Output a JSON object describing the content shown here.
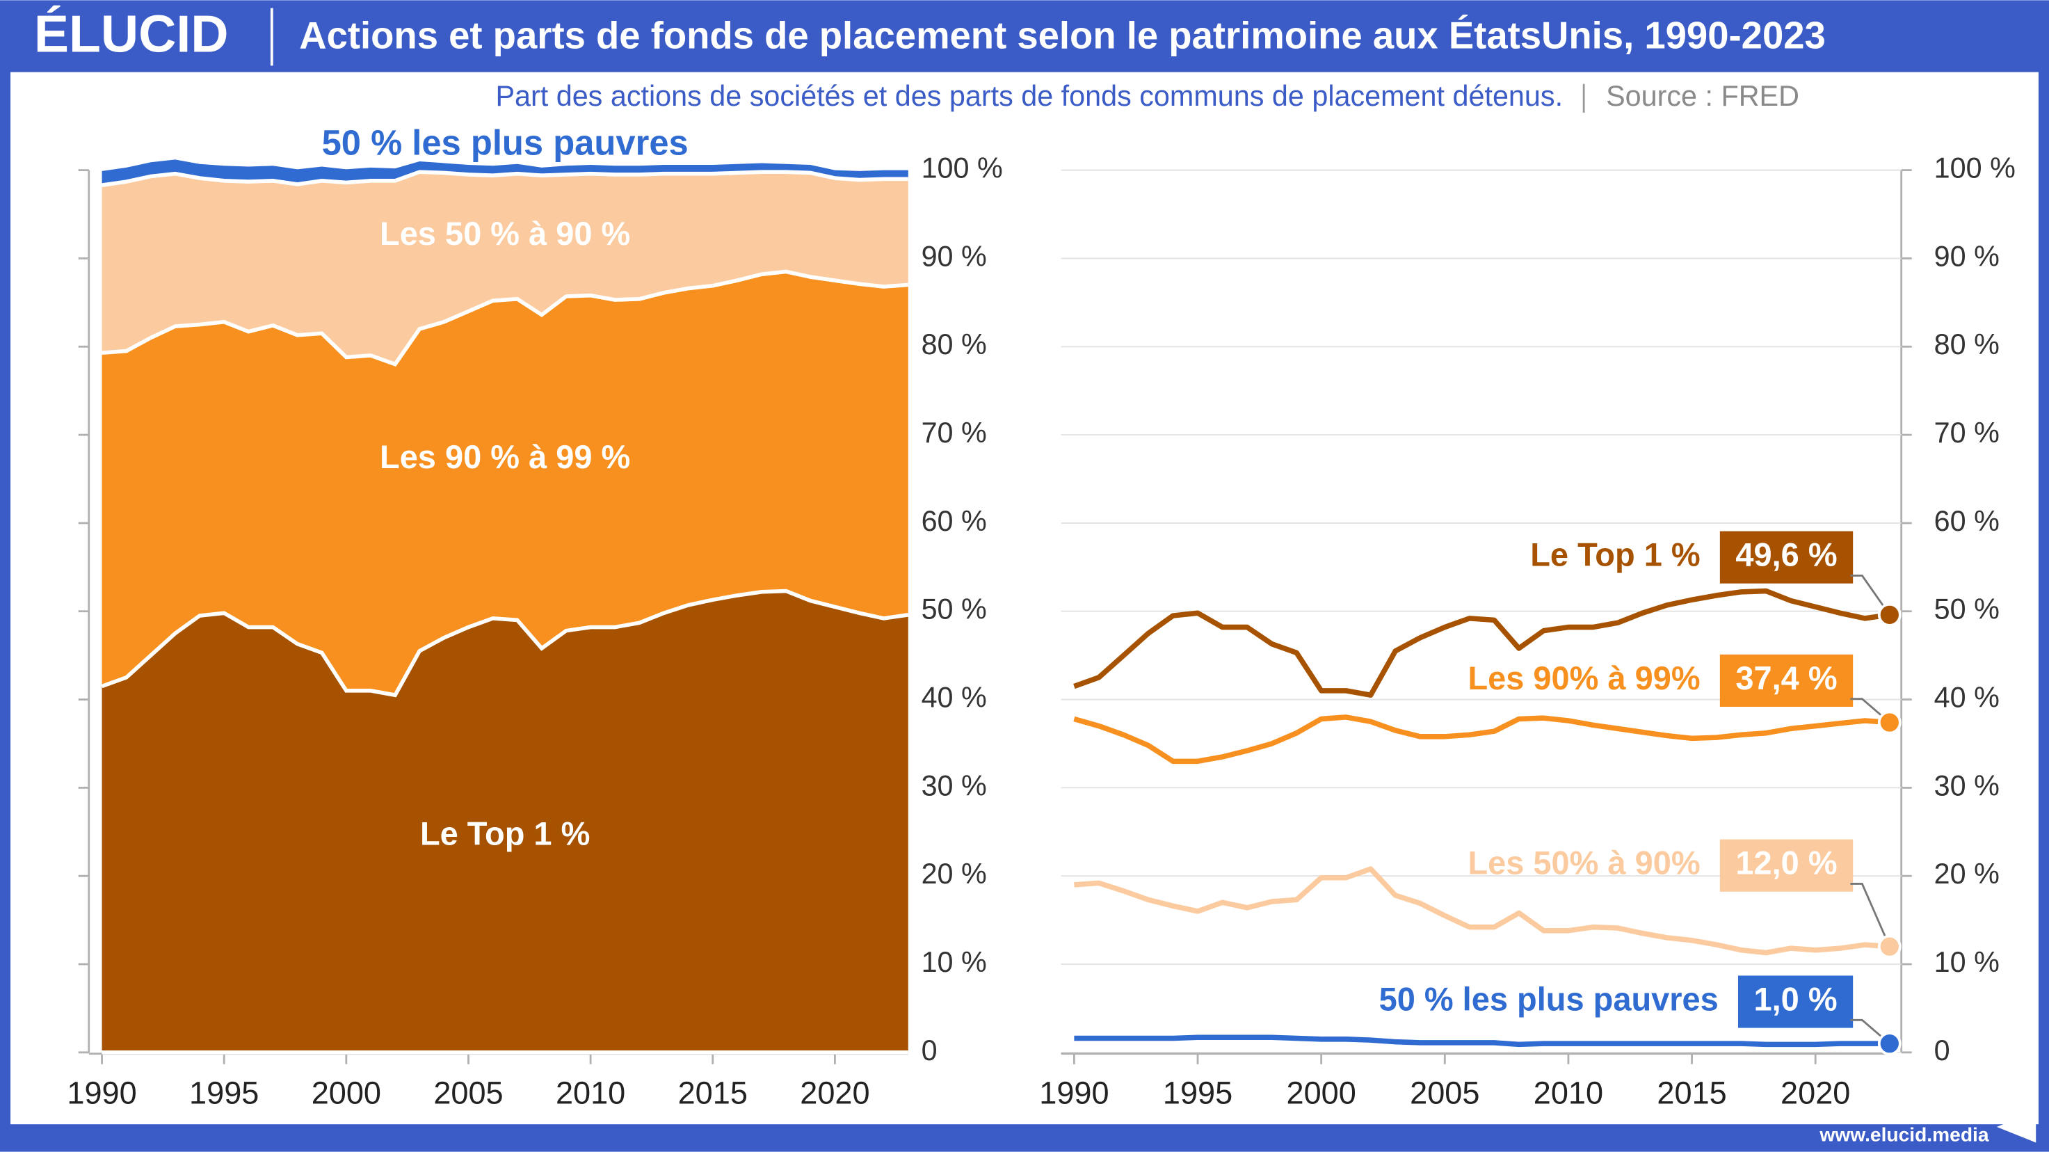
{
  "header": {
    "brand": "ÉLUCID",
    "title": "Actions et parts de fonds de placement selon le patrimoine aux ÉtatsUnis, 1990-2023"
  },
  "subtitle": "Part des actions de sociétés et des parts de fonds communs de placement détenus.",
  "source": "Source : FRED",
  "footer": {
    "url": "www.elucid.media"
  },
  "chart_data": [
    {
      "type": "stacked_area",
      "x": [
        1990,
        1991,
        1992,
        1993,
        1994,
        1995,
        1996,
        1997,
        1998,
        1999,
        2000,
        2001,
        2002,
        2003,
        2004,
        2005,
        2006,
        2007,
        2008,
        2009,
        2010,
        2011,
        2012,
        2013,
        2014,
        2015,
        2016,
        2017,
        2018,
        2019,
        2020,
        2021,
        2022,
        2023
      ],
      "xlim": [
        1990,
        2023
      ],
      "xticks": [
        1990,
        1995,
        2000,
        2005,
        2010,
        2015,
        2020
      ],
      "ylim": [
        0,
        100
      ],
      "yticks": [
        0,
        {
          "value": 10,
          "label": "10 %"
        },
        {
          "value": 20,
          "label": "20 %"
        },
        {
          "value": 30,
          "label": "30 %"
        },
        {
          "value": 40,
          "label": "40 %"
        },
        {
          "value": 50,
          "label": "50 %"
        },
        {
          "value": 60,
          "label": "60 %"
        },
        {
          "value": 70,
          "label": "70 %"
        },
        {
          "value": 80,
          "label": "80 %"
        },
        {
          "value": 90,
          "label": "90 %"
        },
        {
          "value": 100,
          "label": "100 %"
        }
      ],
      "grid": false,
      "series": [
        {
          "name": "Le Top 1 %",
          "color": "#a65200",
          "values": [
            41.5,
            42.5,
            45,
            47.5,
            49.5,
            49.8,
            48.2,
            48.2,
            46.3,
            45.3,
            41,
            41,
            40.5,
            45.5,
            47,
            48.2,
            49.2,
            49,
            45.8,
            47.8,
            48.2,
            48.2,
            48.7,
            49.8,
            50.7,
            51.3,
            51.8,
            52.2,
            52.3,
            51.2,
            50.5,
            49.8,
            49.2,
            49.6
          ]
        },
        {
          "name": "Les 90 % à 99 %",
          "color": "#f7901e",
          "values": [
            37.8,
            37,
            36,
            34.8,
            33,
            33,
            33.5,
            34.2,
            35,
            36.2,
            37.8,
            38,
            37.5,
            36.5,
            35.8,
            35.8,
            36,
            36.4,
            37.8,
            37.9,
            37.6,
            37.1,
            36.7,
            36.3,
            35.9,
            35.6,
            35.7,
            36,
            36.2,
            36.7,
            37,
            37.3,
            37.6,
            37.4
          ]
        },
        {
          "name": "Les 50 % à 90 %",
          "color": "#fbcb9f",
          "values": [
            19,
            19.2,
            18.3,
            17.3,
            16.6,
            16,
            17,
            16.4,
            17.1,
            17.3,
            19.8,
            19.8,
            20.8,
            17.8,
            16.9,
            15.5,
            14.2,
            14.2,
            15.8,
            13.8,
            13.8,
            14.2,
            14.1,
            13.5,
            13,
            12.7,
            12.2,
            11.6,
            11.3,
            11.8,
            11.6,
            11.8,
            12.2,
            12
          ]
        },
        {
          "name": "50 % les plus pauvres",
          "color": "#2f6bd0",
          "values": [
            1.6,
            1.6,
            1.6,
            1.6,
            1.6,
            1.7,
            1.7,
            1.7,
            1.7,
            1.6,
            1.5,
            1.5,
            1.4,
            1.2,
            1.1,
            1.1,
            1.1,
            1.1,
            0.9,
            1,
            1,
            1,
            1,
            1,
            1,
            1,
            1,
            1,
            0.9,
            0.9,
            0.9,
            1,
            1,
            1
          ]
        }
      ]
    },
    {
      "type": "line",
      "x": [
        1990,
        1991,
        1992,
        1993,
        1994,
        1995,
        1996,
        1997,
        1998,
        1999,
        2000,
        2001,
        2002,
        2003,
        2004,
        2005,
        2006,
        2007,
        2008,
        2009,
        2010,
        2011,
        2012,
        2013,
        2014,
        2015,
        2016,
        2017,
        2018,
        2019,
        2020,
        2021,
        2022,
        2023
      ],
      "xlim": [
        1990,
        2023
      ],
      "xticks": [
        1990,
        1995,
        2000,
        2005,
        2010,
        2015,
        2020
      ],
      "ylim": [
        0,
        100
      ],
      "yticks": [
        0,
        {
          "value": 10,
          "label": "10 %"
        },
        {
          "value": 20,
          "label": "20 %"
        },
        {
          "value": 30,
          "label": "30 %"
        },
        {
          "value": 40,
          "label": "40 %"
        },
        {
          "value": 50,
          "label": "50 %"
        },
        {
          "value": 60,
          "label": "60 %"
        },
        {
          "value": 70,
          "label": "70 %"
        },
        {
          "value": 80,
          "label": "80 %"
        },
        {
          "value": 90,
          "label": "90 %"
        },
        {
          "value": 100,
          "label": "100 %"
        }
      ],
      "grid": true,
      "series": [
        {
          "name": "Le Top 1 %",
          "color": "#a65200",
          "end_label": "49,6 %",
          "values": [
            41.5,
            42.5,
            45,
            47.5,
            49.5,
            49.8,
            48.2,
            48.2,
            46.3,
            45.3,
            41,
            41,
            40.5,
            45.5,
            47,
            48.2,
            49.2,
            49,
            45.8,
            47.8,
            48.2,
            48.2,
            48.7,
            49.8,
            50.7,
            51.3,
            51.8,
            52.2,
            52.3,
            51.2,
            50.5,
            49.8,
            49.2,
            49.6
          ]
        },
        {
          "name": "Les 90% à 99%",
          "color": "#f7901e",
          "end_label": "37,4 %",
          "values": [
            37.8,
            37,
            36,
            34.8,
            33,
            33,
            33.5,
            34.2,
            35,
            36.2,
            37.8,
            38,
            37.5,
            36.5,
            35.8,
            35.8,
            36,
            36.4,
            37.8,
            37.9,
            37.6,
            37.1,
            36.7,
            36.3,
            35.9,
            35.6,
            35.7,
            36,
            36.2,
            36.7,
            37,
            37.3,
            37.6,
            37.4
          ]
        },
        {
          "name": "Les 50% à 90%",
          "color": "#fbcb9f",
          "end_label": "12,0 %",
          "values": [
            19,
            19.2,
            18.3,
            17.3,
            16.6,
            16,
            17,
            16.4,
            17.1,
            17.3,
            19.8,
            19.8,
            20.8,
            17.8,
            16.9,
            15.5,
            14.2,
            14.2,
            15.8,
            13.8,
            13.8,
            14.2,
            14.1,
            13.5,
            13,
            12.7,
            12.2,
            11.6,
            11.3,
            11.8,
            11.6,
            11.8,
            12.2,
            12
          ]
        },
        {
          "name": "50 % les plus pauvres",
          "color": "#2f6bd0",
          "end_label": "1,0 %",
          "values": [
            1.6,
            1.6,
            1.6,
            1.6,
            1.6,
            1.7,
            1.7,
            1.7,
            1.7,
            1.6,
            1.5,
            1.5,
            1.4,
            1.2,
            1.1,
            1.1,
            1.1,
            1.1,
            0.9,
            1,
            1,
            1,
            1,
            1,
            1,
            1,
            1,
            1,
            0.9,
            0.9,
            0.9,
            1,
            1,
            1
          ]
        }
      ]
    }
  ]
}
